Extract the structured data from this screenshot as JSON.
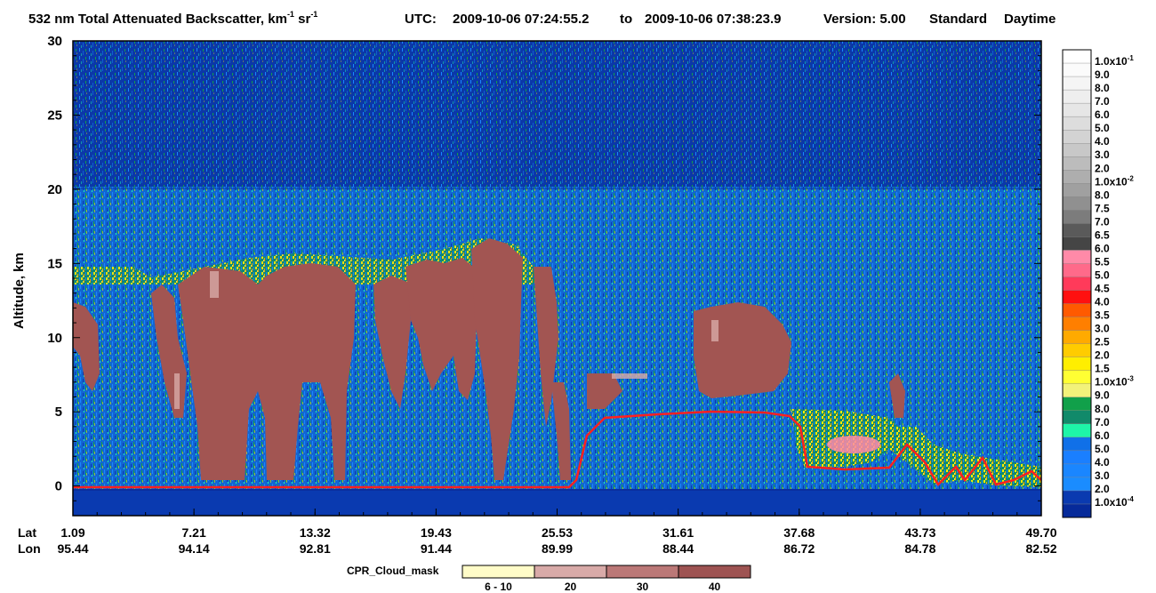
{
  "chart_data": {
    "type": "heatmap",
    "title": {
      "main": "532 nm Total Attenuated Backscatter, km",
      "unit_exp1": "-1",
      "unit_sr": " sr",
      "unit_exp2": "-1",
      "utc_label": "UTC:",
      "start_time": "2009-10-06 07:24:55.2",
      "to_label": "to",
      "end_time": "2009-10-06 07:38:23.9",
      "version": "Version: 5.00",
      "product": "Standard",
      "daytime": "Daytime"
    },
    "y_axis": {
      "label": "Altitude, km",
      "ylim": [
        -2,
        30
      ],
      "ticks": [
        "0",
        "5",
        "10",
        "15",
        "20",
        "25",
        "30"
      ],
      "tick_values": [
        0,
        5,
        10,
        15,
        20,
        25,
        30
      ]
    },
    "x_axis": {
      "lat_label": "Lat",
      "lon_label": "Lon",
      "lat_ticks": [
        "1.09",
        "7.21",
        "13.32",
        "19.43",
        "25.53",
        "31.61",
        "37.68",
        "43.73",
        "49.70"
      ],
      "lon_ticks": [
        "95.44",
        "94.14",
        "92.81",
        "91.44",
        "89.99",
        "88.44",
        "86.72",
        "84.78",
        "82.52"
      ]
    },
    "colorbar": {
      "labels_top_to_bottom": [
        "1.0x10-1",
        "9.0",
        "8.0",
        "7.0",
        "6.0",
        "5.0",
        "4.0",
        "3.0",
        "2.0",
        "1.0x10-2",
        "8.0",
        "7.5",
        "7.0",
        "6.5",
        "6.0",
        "5.5",
        "5.0",
        "4.5",
        "4.0",
        "3.5",
        "3.0",
        "2.5",
        "2.0",
        "1.5",
        "1.0x10-3",
        "9.0",
        "8.0",
        "7.0",
        "6.0",
        "5.0",
        "4.0",
        "3.0",
        "2.0",
        "1.0x10-4"
      ],
      "colors_top_to_bottom": [
        "#ffffff",
        "#fbfbfb",
        "#f5f5f5",
        "#eeeeee",
        "#e6e6e6",
        "#dddddd",
        "#d3d3d3",
        "#c8c8c8",
        "#bcbcbc",
        "#aeaeae",
        "#a0a0a0",
        "#909090",
        "#7c7c7c",
        "#5a5a5a",
        "#454545",
        "#ff8aa8",
        "#ff6a8a",
        "#ff3a5a",
        "#ff1010",
        "#ff5a00",
        "#ff7f00",
        "#ffaa00",
        "#ffcc00",
        "#ffee00",
        "#ffff33",
        "#f2f27a",
        "#11a04a",
        "#118a6a",
        "#1ef5a8",
        "#1070e8",
        "#1a7fff",
        "#1a86ff",
        "#1a8cff",
        "#0a3ab0",
        "#062a9a"
      ]
    },
    "cloud_mask": {
      "label": "CPR_Cloud_mask",
      "bins": [
        "6 - 10",
        "20",
        "30",
        "40"
      ],
      "colors": [
        "#fffcc8",
        "#d8aaa8",
        "#bb7877",
        "#9e5352"
      ]
    },
    "colors": {
      "background": "#0a2f9e",
      "stratosphere": "#0b3aa8",
      "troposphere": "#1270d8",
      "cloud_mask_core": "#a25552",
      "surface_line": "#ff2020",
      "aerosol_yellow": "#ffee00"
    }
  }
}
